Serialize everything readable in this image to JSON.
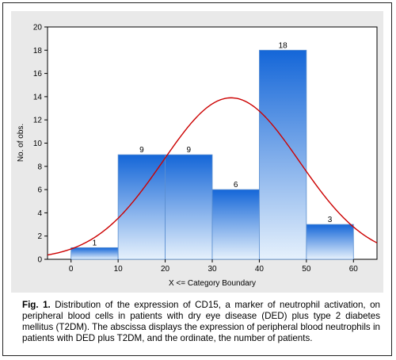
{
  "chart_data": {
    "type": "bar",
    "bins": [
      {
        "from": 0,
        "to": 10,
        "count": 1
      },
      {
        "from": 10,
        "to": 20,
        "count": 9
      },
      {
        "from": 20,
        "to": 30,
        "count": 9
      },
      {
        "from": 30,
        "to": 40,
        "count": 6
      },
      {
        "from": 40,
        "to": 50,
        "count": 18
      },
      {
        "from": 50,
        "to": 60,
        "count": 3
      }
    ],
    "xlabel": "X <= Category Boundary",
    "ylabel": "No. of obs.",
    "xticks": [
      "0",
      "10",
      "20",
      "30",
      "40",
      "50",
      "60"
    ],
    "yticks": [
      "0",
      "2",
      "4",
      "6",
      "8",
      "10",
      "12",
      "14",
      "16",
      "18",
      "20"
    ],
    "xlim": [
      -5,
      65
    ],
    "ylim": [
      0,
      20
    ],
    "fitted_curve": {
      "type": "normal",
      "mean": 34,
      "peak": 13.9,
      "sd": 14.5,
      "color": "#cc0000"
    },
    "bar_gradient": {
      "top": "#1466d8",
      "bottom": "#e6f1fc"
    }
  },
  "caption": {
    "label": "Fig. 1.",
    "text": "Distribution of the expression of CD15, a marker of neutrophil activation, on peripheral blood cells in patients with dry eye disease (DED) plus type 2 diabetes mellitus (T2DM). The abscissa displays the expression of peripheral blood neutrophils in patients with DED plus T2DM, and the ordinate, the number of patients."
  }
}
